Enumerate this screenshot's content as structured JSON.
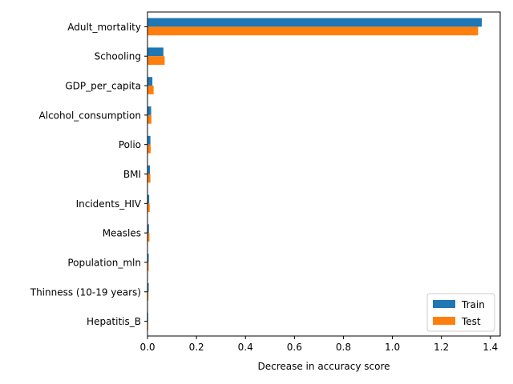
{
  "chart_data": {
    "type": "bar",
    "orientation": "horizontal",
    "title": "",
    "xlabel": "Decrease in accuracy score",
    "ylabel": "",
    "xlim": [
      0,
      1.44
    ],
    "xticks": [
      0.0,
      0.2,
      0.4,
      0.6,
      0.8,
      1.0,
      1.2,
      1.4
    ],
    "xtick_labels": [
      "0.0",
      "0.2",
      "0.4",
      "0.6",
      "0.8",
      "1.0",
      "1.2",
      "1.4"
    ],
    "grid": false,
    "legend_position": "bottom-right",
    "categories": [
      "Adult_mortality",
      "Schooling",
      "GDP_per_capita",
      "Alcohol_consumption",
      "Polio",
      "BMI",
      "Incidents_HIV",
      "Measles",
      "Population_mln",
      "Thinness (10-19 years)",
      "Hepatitis_B"
    ],
    "series": [
      {
        "name": "Train",
        "color": "#1f77b4",
        "values": [
          1.365,
          0.065,
          0.02,
          0.015,
          0.012,
          0.01,
          0.007,
          0.006,
          0.005,
          0.005,
          0.003
        ]
      },
      {
        "name": "Test",
        "color": "#ff7f0e",
        "values": [
          1.35,
          0.07,
          0.025,
          0.016,
          0.013,
          0.012,
          0.009,
          0.008,
          0.005,
          0.004,
          0.003
        ]
      }
    ]
  }
}
